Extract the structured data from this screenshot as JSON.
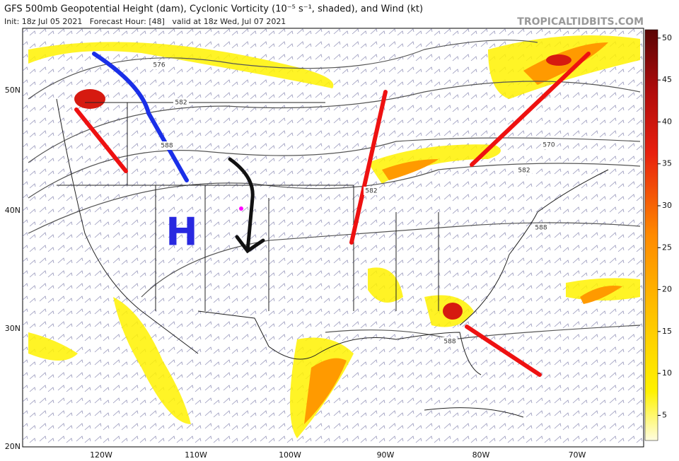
{
  "header": {
    "title": "GFS 500mb Geopotential Height (dam), Cyclonic Vorticity (10⁻⁵ s⁻¹, shaded), and Wind (kt)",
    "subtitle": "Init: 18z Jul 05 2021   Forecast Hour: [48]   valid at 18z Wed, Jul 07 2021",
    "source": "TROPICALTIDBITS.COM"
  },
  "map": {
    "lat_labels": [
      "50N",
      "40N",
      "30N",
      "20N"
    ],
    "lon_labels": [
      "120W",
      "110W",
      "100W",
      "90W",
      "80W",
      "70W"
    ],
    "contour_labels": [
      "576",
      "582",
      "588",
      "582",
      "570",
      "582",
      "588",
      "588"
    ],
    "high_label": "H"
  },
  "colorbar": {
    "ticks": [
      50,
      45,
      40,
      35,
      30,
      25,
      20,
      15,
      10,
      5
    ],
    "lim": [
      2,
      51
    ]
  }
}
